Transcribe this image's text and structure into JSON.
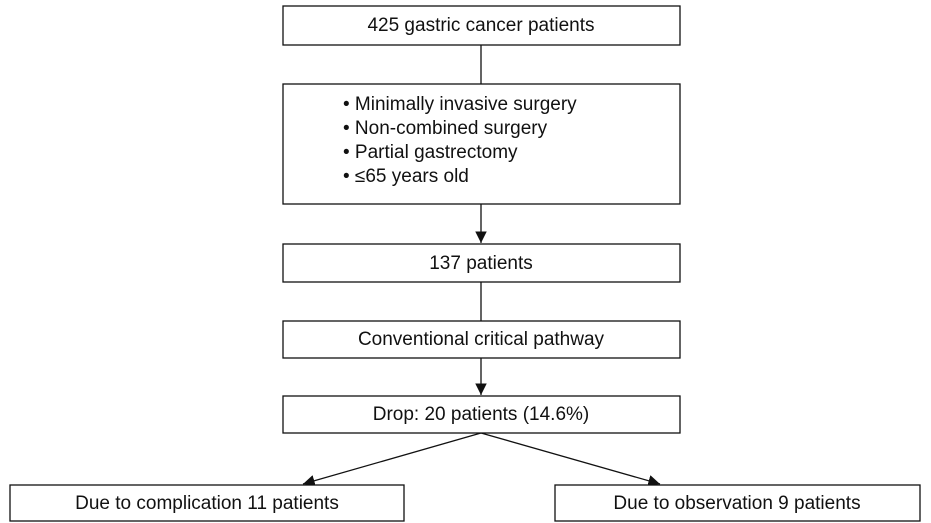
{
  "nodes": [
    {
      "label": "425 gastric cancer patients"
    },
    {
      "items": [
        "• Minimally invasive surgery",
        "• Non-combined surgery",
        "• Partial gastrectomy",
        "• ≤65 years old"
      ]
    },
    {
      "label": "137 patients"
    },
    {
      "label": "Conventional critical pathway"
    },
    {
      "label": "Drop: 20 patients (14.6%)"
    },
    {
      "label": "Due to complication 11 patients"
    },
    {
      "label": "Due to observation 9 patients"
    }
  ]
}
